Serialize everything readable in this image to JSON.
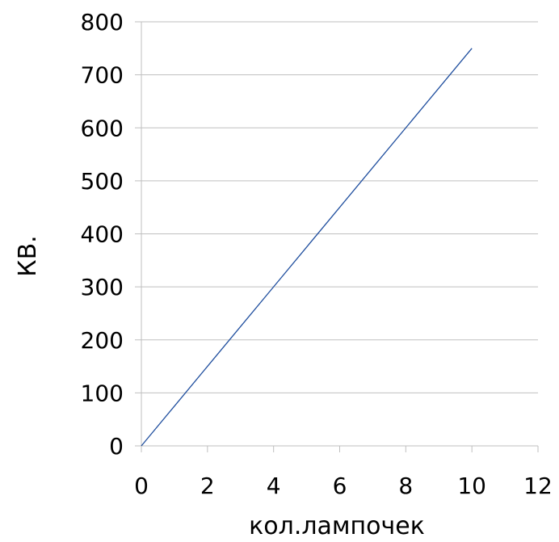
{
  "chart_data": {
    "type": "line",
    "title": "",
    "xlabel": "кол.лампочек",
    "ylabel": "КВ.",
    "xlim": [
      0,
      12
    ],
    "ylim": [
      0,
      800
    ],
    "x_ticks": [
      0,
      2,
      4,
      6,
      8,
      10,
      12
    ],
    "y_ticks": [
      0,
      100,
      200,
      300,
      400,
      500,
      600,
      700,
      800
    ],
    "x_tick_labels": [
      "0",
      "2",
      "4",
      "6",
      "8",
      "10",
      "12"
    ],
    "y_tick_labels": [
      "0",
      "100",
      "200",
      "300",
      "400",
      "500",
      "600",
      "700",
      "800"
    ],
    "grid": {
      "horizontal": true,
      "vertical": false
    },
    "legend": "none",
    "series": [
      {
        "x": [
          0,
          1,
          2,
          3,
          4,
          5,
          6,
          7,
          8,
          9,
          10
        ],
        "y": [
          0,
          75,
          150,
          225,
          300,
          375,
          450,
          525,
          600,
          675,
          750
        ],
        "color": "#1f4e9e"
      }
    ]
  }
}
